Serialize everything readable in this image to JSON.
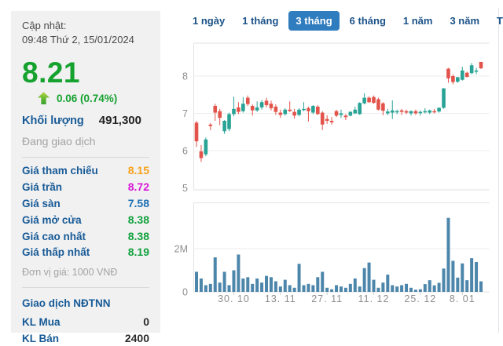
{
  "panel": {
    "updated_label": "Cập nhật:",
    "updated_time": "09:48 Thứ 2, 15/01/2024",
    "price": "8.21",
    "change": "0.06 (0.74%)",
    "volume_label": "Khối lượng",
    "volume_value": "491,300",
    "status": "Đang giao dịch",
    "rows": [
      {
        "label": "Giá tham chiếu",
        "value": "8.15",
        "color": "#f7a21b"
      },
      {
        "label": "Giá trần",
        "value": "8.72",
        "color": "#d718d7"
      },
      {
        "label": "Giá sàn",
        "value": "7.58",
        "color": "#1c6fb2"
      },
      {
        "label": "Giá mở cửa",
        "value": "8.38",
        "color": "#11a13c"
      },
      {
        "label": "Giá cao nhất",
        "value": "8.38",
        "color": "#11a13c"
      },
      {
        "label": "Giá thấp nhất",
        "value": "8.19",
        "color": "#11a13c"
      }
    ],
    "unit_note": "Đơn vị giá: 1000 VNĐ",
    "foreign": {
      "title": "Giao dịch NĐTNN",
      "rows": [
        {
          "label": "KL Mua",
          "value": "0"
        },
        {
          "label": "KL Bán",
          "value": "2400"
        }
      ]
    }
  },
  "tabs": {
    "items": [
      "1 ngày",
      "1 tháng",
      "3 tháng",
      "6 tháng",
      "1 năm",
      "3 năm",
      "Tất cả"
    ],
    "active": "3 tháng",
    "chart_type_icon": "area-chart-icon"
  },
  "colors": {
    "accent_green": "#16a22f",
    "label_navy": "#175a96",
    "active_tab_blue": "#2f7cbe",
    "candle_up": "#28a396",
    "candle_down": "#e2544b",
    "volume_bar": "#4d86ab",
    "axis_text": "#8e8e8e",
    "gridline": "#ededed"
  },
  "chart_data": {
    "type": "candlestick+volume",
    "title": "",
    "price_axis": {
      "ticks": [
        5,
        6,
        7,
        8
      ],
      "unit": "1000 VND"
    },
    "volume_axis": {
      "ticks": [
        "0",
        "2M"
      ],
      "max": 4100000
    },
    "x_labels": [
      {
        "label": "30. 10",
        "candle_index": 8
      },
      {
        "label": "13. 11",
        "candle_index": 18
      },
      {
        "label": "27. 11",
        "candle_index": 28
      },
      {
        "label": "11. 12",
        "candle_index": 38
      },
      {
        "label": "25. 12",
        "candle_index": 48
      },
      {
        "label": "8. 01",
        "candle_index": 57
      }
    ],
    "legend_position": "none",
    "grid": true,
    "candles_ohlc": [
      [
        6.75,
        6.8,
        6.1,
        6.25
      ],
      [
        5.98,
        6.15,
        5.7,
        5.8
      ],
      [
        5.9,
        6.35,
        5.85,
        6.3
      ],
      [
        6.7,
        6.74,
        6.55,
        6.66
      ],
      [
        7.2,
        7.26,
        6.8,
        7.02
      ],
      [
        7.06,
        7.12,
        6.68,
        6.88
      ],
      [
        6.52,
        6.82,
        6.45,
        6.8
      ],
      [
        6.58,
        7.02,
        6.52,
        6.98
      ],
      [
        6.98,
        7.45,
        6.92,
        7.12
      ],
      [
        7.16,
        7.3,
        6.98,
        7.04
      ],
      [
        7.06,
        7.44,
        7.02,
        7.26
      ],
      [
        7.42,
        7.48,
        7.2,
        7.25
      ],
      [
        7.2,
        7.24,
        6.94,
        7.08
      ],
      [
        7.08,
        7.32,
        7.04,
        7.16
      ],
      [
        7.16,
        7.36,
        7.1,
        7.3
      ],
      [
        7.34,
        7.42,
        7.16,
        7.22
      ],
      [
        7.26,
        7.34,
        7.08,
        7.14
      ],
      [
        7.18,
        7.24,
        6.96,
        7.04
      ],
      [
        7.02,
        7.1,
        6.88,
        6.96
      ],
      [
        6.98,
        7.14,
        6.94,
        7.1
      ],
      [
        7.1,
        7.32,
        7.04,
        7.06
      ],
      [
        7.04,
        7.12,
        6.86,
        6.94
      ],
      [
        6.96,
        7.14,
        6.92,
        7.1
      ],
      [
        7.1,
        7.3,
        7.06,
        7.12
      ],
      [
        7.14,
        7.18,
        6.78,
        7.06
      ],
      [
        7.02,
        7.22,
        6.98,
        7.2
      ],
      [
        7.18,
        7.22,
        6.96,
        6.98
      ],
      [
        7.02,
        7.06,
        6.55,
        6.7
      ],
      [
        6.85,
        6.95,
        6.72,
        6.8
      ],
      [
        6.8,
        6.9,
        6.7,
        6.76
      ],
      [
        7.06,
        7.1,
        6.9,
        6.94
      ],
      [
        6.96,
        7.1,
        6.88,
        7.0
      ],
      [
        6.94,
        6.98,
        6.82,
        6.9
      ],
      [
        6.94,
        7.06,
        6.92,
        7.04
      ],
      [
        7.0,
        7.18,
        6.98,
        7.1
      ],
      [
        6.98,
        7.3,
        6.96,
        7.28
      ],
      [
        7.27,
        7.54,
        7.24,
        7.42
      ],
      [
        7.42,
        7.46,
        7.28,
        7.3
      ],
      [
        7.44,
        7.48,
        7.26,
        7.28
      ],
      [
        7.38,
        7.42,
        7.08,
        7.1
      ],
      [
        7.27,
        7.3,
        6.95,
        7.07
      ],
      [
        7.0,
        7.12,
        6.95,
        7.05
      ],
      [
        7.02,
        7.35,
        6.85,
        7.08
      ],
      [
        7.04,
        7.1,
        6.98,
        7.06
      ],
      [
        7.08,
        7.12,
        6.96,
        7.04
      ],
      [
        7.06,
        7.1,
        6.98,
        7.02
      ],
      [
        7.0,
        7.08,
        6.94,
        7.06
      ],
      [
        7.06,
        7.1,
        6.96,
        7.0
      ],
      [
        7.02,
        7.08,
        6.94,
        7.04
      ],
      [
        7.04,
        7.14,
        7.0,
        7.06
      ],
      [
        7.02,
        7.1,
        6.98,
        7.08
      ],
      [
        7.06,
        7.12,
        7.0,
        7.05
      ],
      [
        7.05,
        7.16,
        7.02,
        7.15
      ],
      [
        7.15,
        7.68,
        7.12,
        7.67
      ],
      [
        8.2,
        8.22,
        7.82,
        7.94
      ],
      [
        8.0,
        8.05,
        7.78,
        7.84
      ],
      [
        7.85,
        7.98,
        7.82,
        7.97
      ],
      [
        7.9,
        8.25,
        7.88,
        8.15
      ],
      [
        8.09,
        8.12,
        7.96,
        7.98
      ],
      [
        8.08,
        8.35,
        8.05,
        8.29
      ],
      [
        8.12,
        8.22,
        8.05,
        8.15
      ],
      [
        8.38,
        8.38,
        8.19,
        8.21
      ]
    ],
    "volumes": [
      930000,
      620000,
      310000,
      370000,
      1600000,
      430000,
      930000,
      310000,
      1000000,
      1730000,
      620000,
      680000,
      370000,
      620000,
      430000,
      740000,
      680000,
      490000,
      250000,
      560000,
      310000,
      190000,
      1300000,
      310000,
      370000,
      310000,
      680000,
      930000,
      190000,
      120000,
      310000,
      250000,
      190000,
      370000,
      620000,
      250000,
      1100000,
      1360000,
      560000,
      190000,
      430000,
      800000,
      310000,
      250000,
      310000,
      370000,
      190000,
      100000,
      120000,
      360000,
      540000,
      300000,
      420000,
      1080000,
      3430000,
      1440000,
      660000,
      1320000,
      540000,
      1560000,
      1380000,
      490000
    ]
  }
}
